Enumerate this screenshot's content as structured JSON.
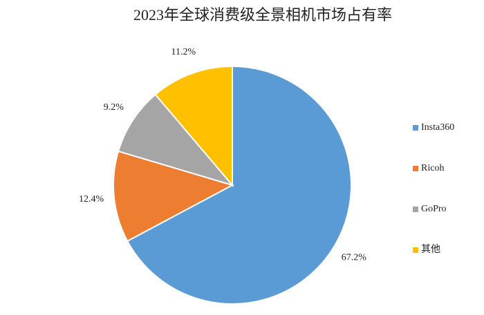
{
  "chart_data": {
    "type": "pie",
    "title": "2023年全球消费级全景相机市场占有率",
    "categories": [
      "Insta360",
      "Ricoh",
      "GoPro",
      "其他"
    ],
    "values": [
      67.2,
      12.4,
      9.2,
      11.2
    ],
    "value_labels": [
      "67.2%",
      "12.4%",
      "9.2%",
      "11.2%"
    ],
    "colors": [
      "#5b9bd5",
      "#ed7d31",
      "#a5a5a5",
      "#ffc000"
    ],
    "legend": "right"
  }
}
